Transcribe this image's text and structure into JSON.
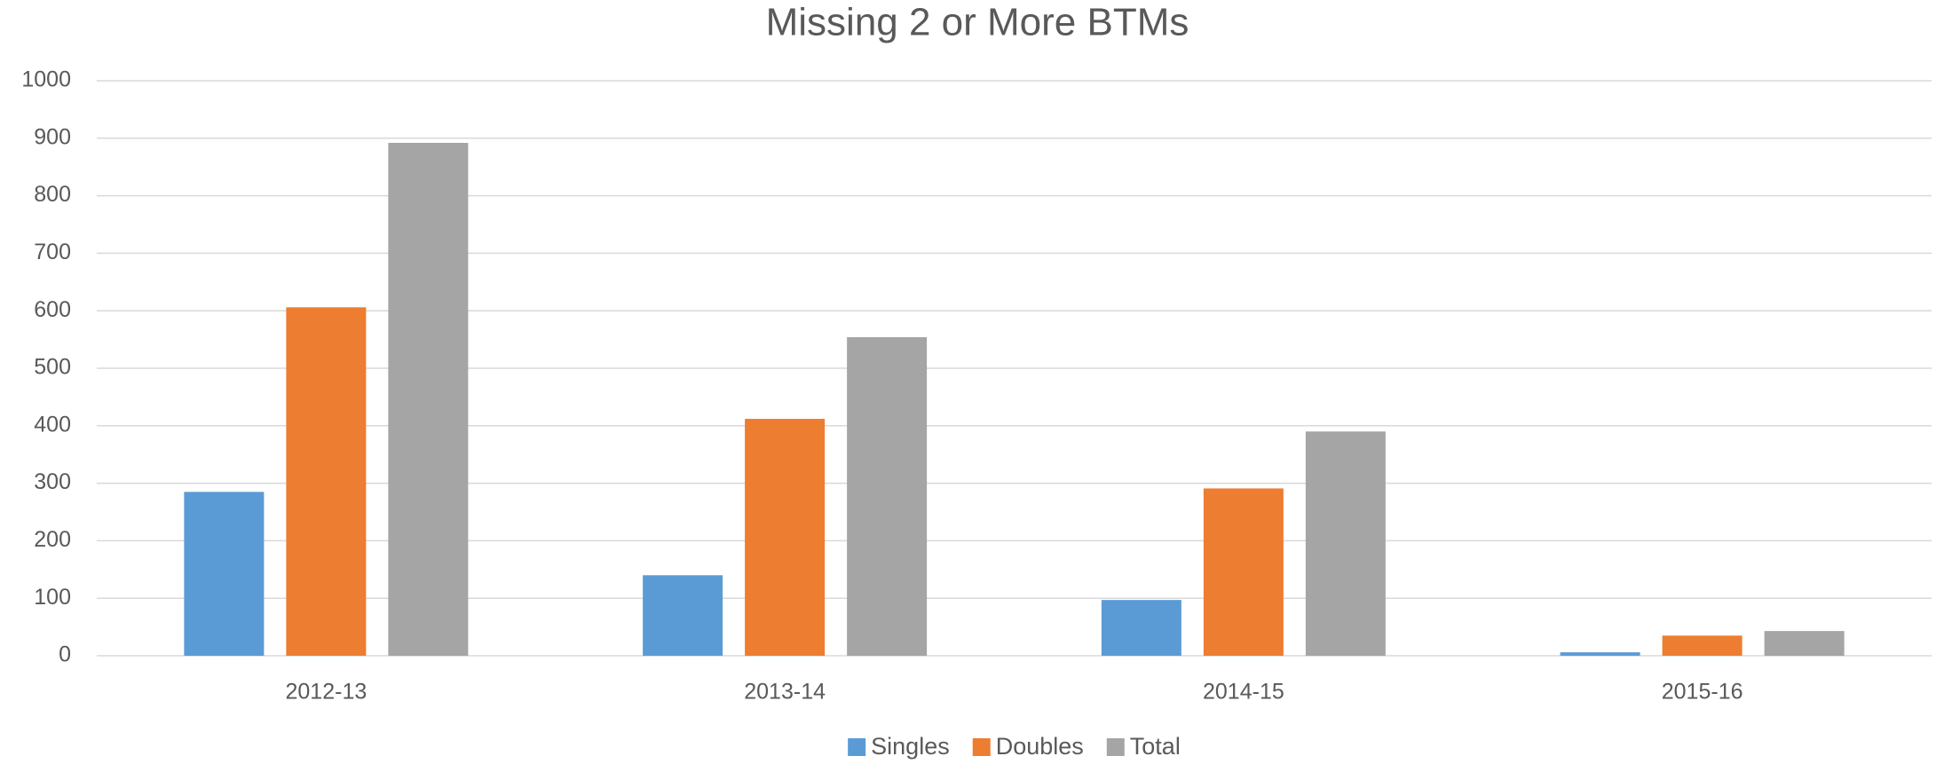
{
  "chart_data": {
    "type": "bar",
    "title": "Missing 2 or More BTMs",
    "categories": [
      "2012-13",
      "2013-14",
      "2014-15",
      "2015-16"
    ],
    "series": [
      {
        "name": "Singles",
        "color": "#5b9bd5",
        "values": [
          285,
          140,
          97,
          6
        ]
      },
      {
        "name": "Doubles",
        "color": "#ed7d31",
        "values": [
          606,
          412,
          291,
          35
        ]
      },
      {
        "name": "Total",
        "color": "#a5a5a5",
        "values": [
          892,
          554,
          390,
          43
        ]
      }
    ],
    "ylim": [
      0,
      1000
    ],
    "yticks": [
      0,
      100,
      200,
      300,
      400,
      500,
      600,
      700,
      800,
      900,
      1000
    ],
    "grid": true,
    "legend": "bottom"
  }
}
